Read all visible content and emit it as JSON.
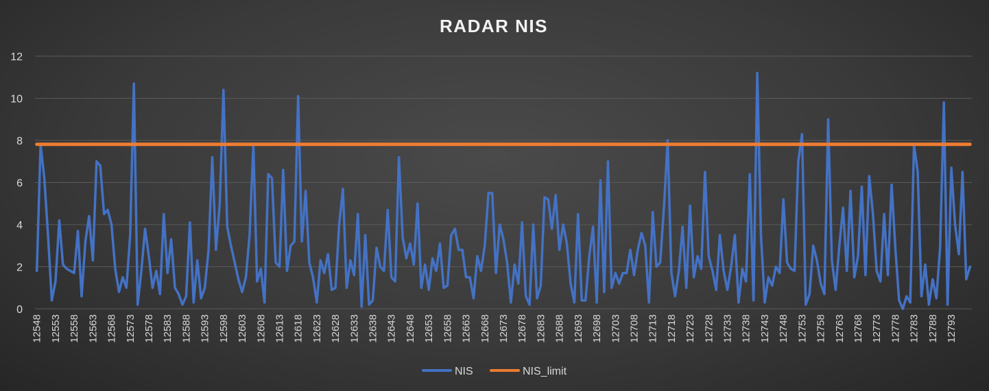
{
  "chart_data": {
    "type": "line",
    "title": "RADAR NIS",
    "xlabel": "",
    "ylabel": "",
    "ylim": [
      0,
      12
    ],
    "yticks": [
      0,
      2,
      4,
      6,
      8,
      10,
      12
    ],
    "grid": "horizontal",
    "legend_position": "bottom",
    "x_start": 12548,
    "x_tick_step": 5,
    "x_tick_labels": [
      "12548",
      "12553",
      "12558",
      "12563",
      "12568",
      "12573",
      "12578",
      "12583",
      "12588",
      "12593",
      "12598",
      "12603",
      "12608",
      "12613",
      "12618",
      "12623",
      "12628",
      "12633",
      "12638",
      "12643",
      "12648",
      "12653",
      "12658",
      "12663",
      "12668",
      "12673",
      "12678",
      "12683",
      "12688",
      "12693",
      "12698",
      "12703",
      "12708",
      "12713",
      "12718",
      "12723",
      "12728",
      "12733",
      "12738",
      "12743",
      "12748",
      "12753",
      "12758",
      "12763",
      "12768",
      "12773",
      "12778",
      "12783",
      "12788",
      "12793"
    ],
    "series": [
      {
        "name": "NIS",
        "color": "#4472C4",
        "values": [
          1.8,
          7.8,
          6.2,
          3.5,
          0.4,
          1.3,
          4.2,
          2.1,
          1.9,
          1.8,
          1.7,
          3.7,
          0.6,
          3.2,
          4.4,
          2.3,
          7.0,
          6.8,
          4.5,
          4.7,
          4.0,
          1.9,
          0.8,
          1.5,
          1.0,
          3.5,
          10.7,
          0.2,
          1.8,
          3.8,
          2.5,
          1.0,
          1.8,
          0.7,
          4.5,
          1.7,
          3.3,
          1.0,
          0.7,
          0.2,
          0.6,
          4.1,
          0.3,
          2.3,
          0.5,
          1.0,
          2.8,
          7.2,
          2.8,
          5.0,
          10.4,
          3.9,
          3.0,
          2.2,
          1.4,
          0.8,
          1.5,
          3.5,
          7.8,
          1.3,
          1.9,
          0.3,
          6.4,
          6.2,
          2.2,
          2.0,
          6.6,
          1.8,
          3.0,
          3.2,
          10.1,
          3.2,
          5.6,
          2.2,
          1.5,
          0.3,
          2.3,
          1.7,
          2.6,
          0.9,
          1.0,
          4.0,
          5.7,
          1.0,
          2.3,
          1.6,
          4.5,
          0.1,
          3.5,
          0.2,
          0.4,
          2.9,
          2.0,
          1.8,
          4.7,
          1.5,
          1.3,
          7.2,
          3.4,
          2.4,
          3.1,
          2.1,
          5.0,
          1.0,
          2.1,
          0.9,
          2.4,
          1.8,
          3.1,
          1.0,
          1.1,
          3.5,
          3.8,
          2.8,
          2.8,
          1.5,
          1.5,
          0.5,
          2.5,
          1.8,
          3.0,
          5.5,
          5.5,
          1.7,
          4.0,
          3.3,
          2.2,
          0.3,
          2.1,
          1.2,
          4.1,
          0.6,
          0.2,
          4.0,
          0.5,
          1.1,
          5.3,
          5.2,
          3.8,
          5.4,
          2.8,
          4.0,
          3.1,
          1.2,
          0.3,
          4.5,
          0.4,
          0.4,
          2.5,
          3.9,
          0.3,
          6.1,
          0.8,
          7.0,
          1.0,
          1.7,
          1.2,
          1.7,
          1.7,
          2.8,
          1.6,
          2.8,
          3.6,
          3.0,
          0.3,
          4.6,
          2.0,
          2.2,
          4.8,
          8.0,
          1.7,
          0.6,
          1.8,
          3.9,
          1.0,
          4.9,
          1.5,
          2.5,
          1.9,
          6.5,
          2.5,
          1.8,
          0.9,
          3.5,
          1.8,
          0.9,
          2.0,
          3.5,
          0.3,
          1.9,
          1.3,
          6.4,
          0.4,
          11.2,
          3.5,
          0.3,
          1.5,
          1.1,
          2.0,
          1.7,
          5.2,
          2.2,
          1.9,
          1.8,
          7.0,
          8.3,
          0.2,
          0.7,
          3.0,
          2.3,
          1.2,
          0.7,
          9.0,
          2.3,
          0.9,
          3.0,
          4.8,
          1.8,
          5.6,
          1.5,
          2.5,
          5.8,
          1.6,
          6.3,
          4.5,
          1.8,
          1.3,
          4.5,
          1.6,
          5.9,
          2.9,
          0.4,
          0.0,
          0.6,
          0.3,
          7.8,
          6.5,
          0.6,
          2.1,
          0.2,
          1.4,
          0.5,
          2.9,
          9.8,
          0.2,
          6.7,
          4.0,
          2.6,
          6.5,
          1.4,
          2.0
        ]
      },
      {
        "name": "NIS_limit",
        "color": "#ED7D31",
        "constant": 7.815
      }
    ]
  }
}
